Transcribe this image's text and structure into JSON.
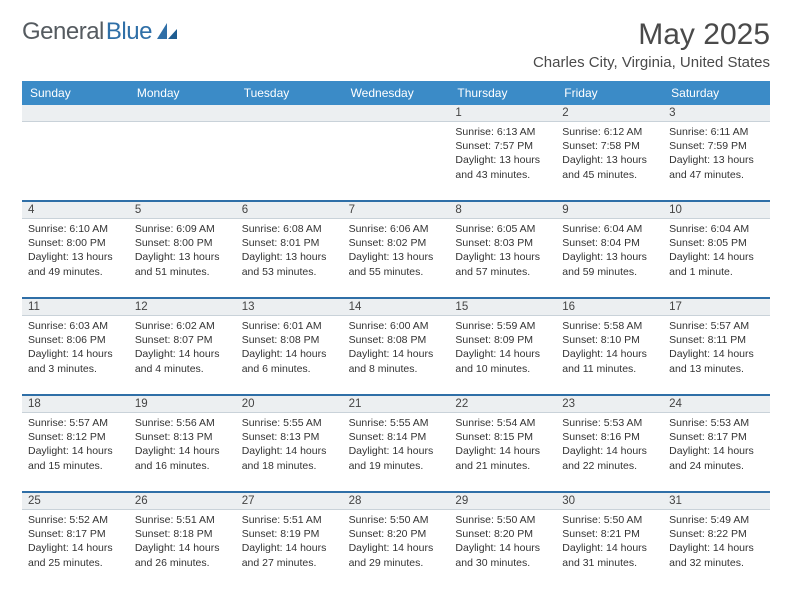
{
  "brand": {
    "part1": "General",
    "part2": "Blue"
  },
  "title": "May 2025",
  "location": "Charles City, Virginia, United States",
  "theme": {
    "header_bg": "#3b8bc7",
    "rule_color": "#2f6fa7",
    "shade_bg": "#eceff1",
    "text_color": "#333333",
    "title_color": "#4a4a4a"
  },
  "day_names": [
    "Sunday",
    "Monday",
    "Tuesday",
    "Wednesday",
    "Thursday",
    "Friday",
    "Saturday"
  ],
  "weeks": [
    {
      "nums": [
        "",
        "",
        "",
        "",
        "1",
        "2",
        "3"
      ],
      "cells": [
        null,
        null,
        null,
        null,
        {
          "sunrise": "Sunrise: 6:13 AM",
          "sunset": "Sunset: 7:57 PM",
          "day1": "Daylight: 13 hours",
          "day2": "and 43 minutes."
        },
        {
          "sunrise": "Sunrise: 6:12 AM",
          "sunset": "Sunset: 7:58 PM",
          "day1": "Daylight: 13 hours",
          "day2": "and 45 minutes."
        },
        {
          "sunrise": "Sunrise: 6:11 AM",
          "sunset": "Sunset: 7:59 PM",
          "day1": "Daylight: 13 hours",
          "day2": "and 47 minutes."
        }
      ]
    },
    {
      "nums": [
        "4",
        "5",
        "6",
        "7",
        "8",
        "9",
        "10"
      ],
      "cells": [
        {
          "sunrise": "Sunrise: 6:10 AM",
          "sunset": "Sunset: 8:00 PM",
          "day1": "Daylight: 13 hours",
          "day2": "and 49 minutes."
        },
        {
          "sunrise": "Sunrise: 6:09 AM",
          "sunset": "Sunset: 8:00 PM",
          "day1": "Daylight: 13 hours",
          "day2": "and 51 minutes."
        },
        {
          "sunrise": "Sunrise: 6:08 AM",
          "sunset": "Sunset: 8:01 PM",
          "day1": "Daylight: 13 hours",
          "day2": "and 53 minutes."
        },
        {
          "sunrise": "Sunrise: 6:06 AM",
          "sunset": "Sunset: 8:02 PM",
          "day1": "Daylight: 13 hours",
          "day2": "and 55 minutes."
        },
        {
          "sunrise": "Sunrise: 6:05 AM",
          "sunset": "Sunset: 8:03 PM",
          "day1": "Daylight: 13 hours",
          "day2": "and 57 minutes."
        },
        {
          "sunrise": "Sunrise: 6:04 AM",
          "sunset": "Sunset: 8:04 PM",
          "day1": "Daylight: 13 hours",
          "day2": "and 59 minutes."
        },
        {
          "sunrise": "Sunrise: 6:04 AM",
          "sunset": "Sunset: 8:05 PM",
          "day1": "Daylight: 14 hours",
          "day2": "and 1 minute."
        }
      ]
    },
    {
      "nums": [
        "11",
        "12",
        "13",
        "14",
        "15",
        "16",
        "17"
      ],
      "cells": [
        {
          "sunrise": "Sunrise: 6:03 AM",
          "sunset": "Sunset: 8:06 PM",
          "day1": "Daylight: 14 hours",
          "day2": "and 3 minutes."
        },
        {
          "sunrise": "Sunrise: 6:02 AM",
          "sunset": "Sunset: 8:07 PM",
          "day1": "Daylight: 14 hours",
          "day2": "and 4 minutes."
        },
        {
          "sunrise": "Sunrise: 6:01 AM",
          "sunset": "Sunset: 8:08 PM",
          "day1": "Daylight: 14 hours",
          "day2": "and 6 minutes."
        },
        {
          "sunrise": "Sunrise: 6:00 AM",
          "sunset": "Sunset: 8:08 PM",
          "day1": "Daylight: 14 hours",
          "day2": "and 8 minutes."
        },
        {
          "sunrise": "Sunrise: 5:59 AM",
          "sunset": "Sunset: 8:09 PM",
          "day1": "Daylight: 14 hours",
          "day2": "and 10 minutes."
        },
        {
          "sunrise": "Sunrise: 5:58 AM",
          "sunset": "Sunset: 8:10 PM",
          "day1": "Daylight: 14 hours",
          "day2": "and 11 minutes."
        },
        {
          "sunrise": "Sunrise: 5:57 AM",
          "sunset": "Sunset: 8:11 PM",
          "day1": "Daylight: 14 hours",
          "day2": "and 13 minutes."
        }
      ]
    },
    {
      "nums": [
        "18",
        "19",
        "20",
        "21",
        "22",
        "23",
        "24"
      ],
      "cells": [
        {
          "sunrise": "Sunrise: 5:57 AM",
          "sunset": "Sunset: 8:12 PM",
          "day1": "Daylight: 14 hours",
          "day2": "and 15 minutes."
        },
        {
          "sunrise": "Sunrise: 5:56 AM",
          "sunset": "Sunset: 8:13 PM",
          "day1": "Daylight: 14 hours",
          "day2": "and 16 minutes."
        },
        {
          "sunrise": "Sunrise: 5:55 AM",
          "sunset": "Sunset: 8:13 PM",
          "day1": "Daylight: 14 hours",
          "day2": "and 18 minutes."
        },
        {
          "sunrise": "Sunrise: 5:55 AM",
          "sunset": "Sunset: 8:14 PM",
          "day1": "Daylight: 14 hours",
          "day2": "and 19 minutes."
        },
        {
          "sunrise": "Sunrise: 5:54 AM",
          "sunset": "Sunset: 8:15 PM",
          "day1": "Daylight: 14 hours",
          "day2": "and 21 minutes."
        },
        {
          "sunrise": "Sunrise: 5:53 AM",
          "sunset": "Sunset: 8:16 PM",
          "day1": "Daylight: 14 hours",
          "day2": "and 22 minutes."
        },
        {
          "sunrise": "Sunrise: 5:53 AM",
          "sunset": "Sunset: 8:17 PM",
          "day1": "Daylight: 14 hours",
          "day2": "and 24 minutes."
        }
      ]
    },
    {
      "nums": [
        "25",
        "26",
        "27",
        "28",
        "29",
        "30",
        "31"
      ],
      "cells": [
        {
          "sunrise": "Sunrise: 5:52 AM",
          "sunset": "Sunset: 8:17 PM",
          "day1": "Daylight: 14 hours",
          "day2": "and 25 minutes."
        },
        {
          "sunrise": "Sunrise: 5:51 AM",
          "sunset": "Sunset: 8:18 PM",
          "day1": "Daylight: 14 hours",
          "day2": "and 26 minutes."
        },
        {
          "sunrise": "Sunrise: 5:51 AM",
          "sunset": "Sunset: 8:19 PM",
          "day1": "Daylight: 14 hours",
          "day2": "and 27 minutes."
        },
        {
          "sunrise": "Sunrise: 5:50 AM",
          "sunset": "Sunset: 8:20 PM",
          "day1": "Daylight: 14 hours",
          "day2": "and 29 minutes."
        },
        {
          "sunrise": "Sunrise: 5:50 AM",
          "sunset": "Sunset: 8:20 PM",
          "day1": "Daylight: 14 hours",
          "day2": "and 30 minutes."
        },
        {
          "sunrise": "Sunrise: 5:50 AM",
          "sunset": "Sunset: 8:21 PM",
          "day1": "Daylight: 14 hours",
          "day2": "and 31 minutes."
        },
        {
          "sunrise": "Sunrise: 5:49 AM",
          "sunset": "Sunset: 8:22 PM",
          "day1": "Daylight: 14 hours",
          "day2": "and 32 minutes."
        }
      ]
    }
  ]
}
